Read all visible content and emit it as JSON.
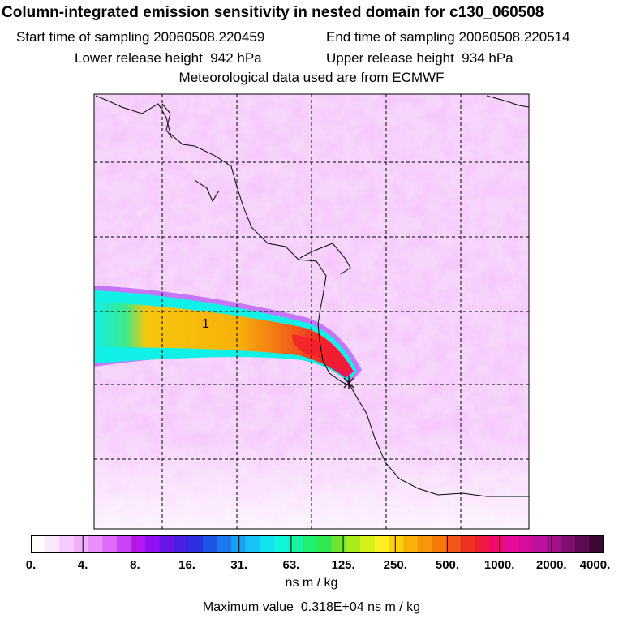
{
  "header": {
    "title": "Column-integrated emission sensitivity in nested domain for c130_060508",
    "start_label": "Start time of sampling",
    "start_value": "20060508.220459",
    "end_label": "End time of sampling",
    "end_value": "20060508.220514",
    "lower_label": "Lower release height",
    "lower_value": "942 hPa",
    "upper_label": "Upper release height",
    "upper_value": "934 hPa",
    "met_line": "Meteorological data used are from ECMWF"
  },
  "map": {
    "plume_label": "1",
    "colors": {
      "background": "#f3c8fa",
      "plume_cyan": "#11f0e6",
      "plume_yellow": "#f6c60e",
      "plume_red": "#f31e2d"
    }
  },
  "legend": {
    "ticks": [
      "0.",
      "4.",
      "8.",
      "16.",
      "31.",
      "63.",
      "125.",
      "250.",
      "500.",
      "1000.",
      "2000.",
      "4000."
    ],
    "colors": [
      "#ffffff",
      "#fbe6ff",
      "#f6ccff",
      "#f0b2fe",
      "#e98ffc",
      "#de6bfb",
      "#cd42f7",
      "#b818f4",
      "#8f10f0",
      "#6a14ea",
      "#4a1ee4",
      "#2c31df",
      "#1c55e6",
      "#1a7aee",
      "#18a0f3",
      "#17c4f4",
      "#10e5ee",
      "#10f5dc",
      "#18f5a0",
      "#20f070",
      "#30e850",
      "#70e530",
      "#a8ec20",
      "#d4f018",
      "#fff020",
      "#fcd010",
      "#f8b20a",
      "#f69608",
      "#f47a0a",
      "#f2581a",
      "#ef3220",
      "#f01a40",
      "#f00a70",
      "#e80a98",
      "#d60e9e",
      "#c010a0",
      "#a2108a",
      "#801070",
      "#5c0c52",
      "#3c0830"
    ],
    "units": "ns m / kg",
    "max_label": "Maximum value",
    "max_value": "0.318E+04",
    "max_units": "ns m / kg"
  }
}
